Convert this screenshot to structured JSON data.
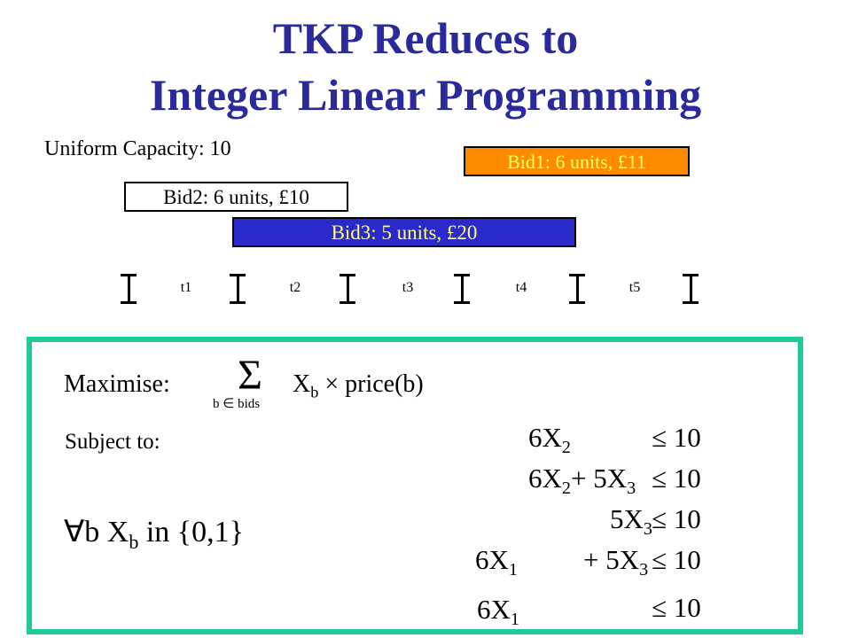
{
  "slide": {
    "title_line1": "TKP Reduces to",
    "title_line2": "Integer Linear Programming",
    "capacity_label": "Uniform Capacity: 10"
  },
  "bids": {
    "bid1": "Bid1: 6 units, £11",
    "bid2": "Bid2: 6 units, £10",
    "bid3": "Bid3: 5 units, £20"
  },
  "timeline": {
    "labels": [
      "t1",
      "t2",
      "t3",
      "t4",
      "t5"
    ]
  },
  "formulation": {
    "maximise_label": "Maximise:",
    "sum_symbol": "Σ",
    "sum_index": "b ∈ bids",
    "objective_var": "X",
    "objective_sub": "b",
    "objective_rest": "× price(b)",
    "subject_label": "Subject to:",
    "domain_prefix": "∀b X",
    "domain_sub": "b",
    "domain_rest": " in {0,1}",
    "constraints": [
      {
        "coef_a": "6X",
        "sub_a": "2",
        "mid": "",
        "coef_b": "",
        "sub_b": "",
        "rhs": "≤ 10"
      },
      {
        "coef_a": "6X",
        "sub_a": "2",
        "mid": "+ 5X",
        "coef_b": "",
        "sub_b": "3",
        "rhs": "≤ 10"
      },
      {
        "coef_a": "",
        "sub_a": "",
        "mid": "5X",
        "coef_b": "",
        "sub_b": "3",
        "rhs": "≤ 10"
      },
      {
        "coef_a": "6X",
        "sub_a": "1",
        "mid": "+ 5X",
        "coef_b": "",
        "sub_b": "3",
        "rhs": "≤ 10"
      },
      {
        "coef_a": "6X",
        "sub_a": "1",
        "mid": "",
        "coef_b": "",
        "sub_b": "",
        "rhs": "≤ 10"
      }
    ]
  },
  "colors": {
    "title": "#2a2a9c",
    "bid1_fill": "#ff8c00",
    "bid3_fill": "#2a2acc",
    "bid_text": "#ffff66",
    "panel_border": "#1fcc99"
  }
}
